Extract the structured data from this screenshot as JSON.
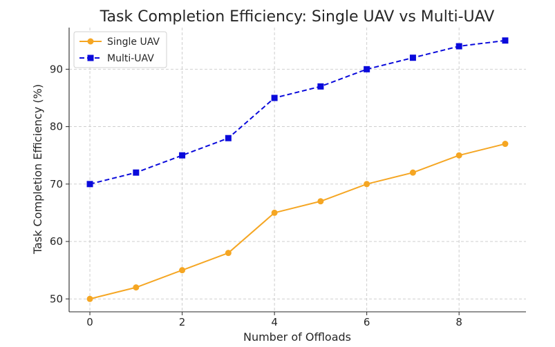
{
  "chart_data": {
    "type": "line",
    "title": "Task Completion Efficiency: Single UAV vs Multi-UAV",
    "xlabel": "Number of Offloads",
    "ylabel": "Task Completion Efficiency (%)",
    "x": [
      0,
      1,
      2,
      3,
      4,
      5,
      6,
      7,
      8,
      9
    ],
    "xlim": [
      -0.45,
      9.45
    ],
    "ylim": [
      47.75,
      97.25
    ],
    "xticks": [
      0,
      2,
      4,
      6,
      8
    ],
    "yticks": [
      50,
      60,
      70,
      80,
      90
    ],
    "grid": true,
    "legend_position": "top-left",
    "series": [
      {
        "name": "Single UAV",
        "values": [
          50,
          52,
          55,
          58,
          65,
          67,
          70,
          72,
          75,
          77
        ],
        "color": "#f5a623",
        "line_style": "solid",
        "marker": "circle"
      },
      {
        "name": "Multi-UAV",
        "values": [
          70,
          72,
          75,
          78,
          85,
          87,
          90,
          92,
          94,
          95
        ],
        "color": "#0a0adb",
        "line_style": "dashed",
        "marker": "square"
      }
    ]
  }
}
